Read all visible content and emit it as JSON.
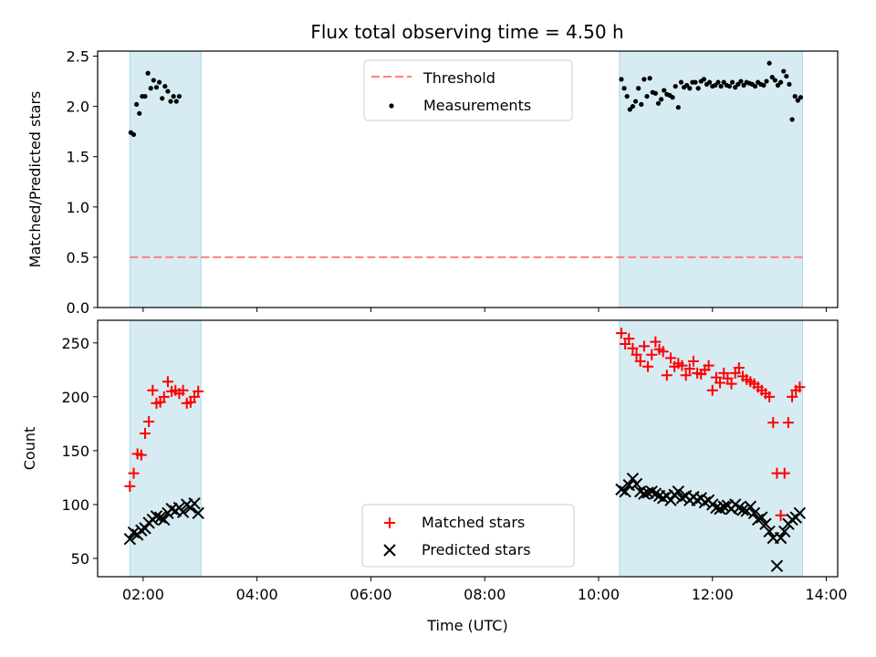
{
  "title": "Flux total observing time = 4.50 h",
  "colors": {
    "shade": "#add8e6",
    "threshold": "#ff7f7f",
    "measurements": "#000000",
    "matched": "#ff0000",
    "predicted": "#000000"
  },
  "chart_data": [
    {
      "type": "scatter",
      "ylabel": "Matched/Predicted stars",
      "xlim_hours": [
        1.2,
        14.2
      ],
      "ylim": [
        0,
        2.55
      ],
      "yticks": [
        "0.0",
        "0.5",
        "1.0",
        "1.5",
        "2.0",
        "2.5"
      ],
      "shaded_intervals": [
        [
          "01:46",
          "03:01"
        ],
        [
          "10:22",
          "13:35"
        ]
      ],
      "threshold": 0.5,
      "legend": {
        "placement": "top-center",
        "entries": [
          "Threshold",
          "Measurements"
        ]
      },
      "series": [
        {
          "name": "Measurements",
          "x": [
            "01:47",
            "01:50",
            "01:53",
            "01:56",
            "01:59",
            "02:02",
            "02:05",
            "02:08",
            "02:11",
            "02:14",
            "02:17",
            "02:20",
            "02:23",
            "02:26",
            "02:29",
            "02:32",
            "02:35",
            "02:38",
            "10:24",
            "10:27",
            "10:30",
            "10:33",
            "10:36",
            "10:39",
            "10:42",
            "10:45",
            "10:48",
            "10:51",
            "10:54",
            "10:57",
            "11:00",
            "11:03",
            "11:06",
            "11:09",
            "11:12",
            "11:15",
            "11:18",
            "11:21",
            "11:24",
            "11:27",
            "11:30",
            "11:33",
            "11:36",
            "11:39",
            "11:42",
            "11:45",
            "11:48",
            "11:51",
            "11:54",
            "11:57",
            "12:00",
            "12:03",
            "12:06",
            "12:09",
            "12:12",
            "12:15",
            "12:18",
            "12:21",
            "12:24",
            "12:27",
            "12:30",
            "12:33",
            "12:36",
            "12:39",
            "12:42",
            "12:45",
            "12:48",
            "12:51",
            "12:54",
            "12:57",
            "13:00",
            "13:03",
            "13:06",
            "13:09",
            "13:12",
            "13:15",
            "13:18",
            "13:21",
            "13:24",
            "13:27",
            "13:30",
            "13:33"
          ],
          "y": [
            1.74,
            1.72,
            2.02,
            1.93,
            2.1,
            2.1,
            2.33,
            2.18,
            2.26,
            2.19,
            2.24,
            2.08,
            2.2,
            2.15,
            2.05,
            2.1,
            2.05,
            2.1,
            2.27,
            2.18,
            2.1,
            1.97,
            2.0,
            2.05,
            2.18,
            2.02,
            2.27,
            2.1,
            2.28,
            2.14,
            2.13,
            2.03,
            2.07,
            2.16,
            2.12,
            2.11,
            2.09,
            2.2,
            1.99,
            2.24,
            2.19,
            2.21,
            2.18,
            2.24,
            2.24,
            2.18,
            2.25,
            2.27,
            2.22,
            2.24,
            2.2,
            2.21,
            2.24,
            2.2,
            2.24,
            2.21,
            2.2,
            2.24,
            2.19,
            2.22,
            2.25,
            2.21,
            2.24,
            2.23,
            2.22,
            2.2,
            2.24,
            2.22,
            2.21,
            2.25,
            2.43,
            2.29,
            2.26,
            2.21,
            2.24,
            2.35,
            2.3,
            2.22,
            1.87,
            2.1,
            2.06,
            2.09
          ]
        }
      ]
    },
    {
      "type": "scatter",
      "xlabel": "Time (UTC)",
      "ylabel": "Count",
      "xlim_hours": [
        1.2,
        14.2
      ],
      "ylim": [
        33,
        271
      ],
      "yticks": [
        "50",
        "100",
        "150",
        "200",
        "250"
      ],
      "xticks": [
        "02:00",
        "04:00",
        "06:00",
        "08:00",
        "10:00",
        "12:00",
        "14:00"
      ],
      "shaded_intervals": [
        [
          "01:46",
          "03:01"
        ],
        [
          "10:22",
          "13:35"
        ]
      ],
      "legend": {
        "placement": "bottom-center",
        "entries": [
          "Matched stars",
          "Predicted stars"
        ]
      },
      "series": [
        {
          "name": "Matched stars",
          "marker": "plus",
          "x": [
            "01:46",
            "01:50",
            "01:54",
            "01:58",
            "02:02",
            "02:06",
            "02:10",
            "02:14",
            "02:18",
            "02:22",
            "02:26",
            "02:30",
            "02:34",
            "02:38",
            "02:42",
            "02:46",
            "02:50",
            "02:54",
            "02:58",
            "10:24",
            "10:28",
            "10:32",
            "10:36",
            "10:40",
            "10:44",
            "10:48",
            "10:52",
            "10:56",
            "11:00",
            "11:04",
            "11:08",
            "11:12",
            "11:16",
            "11:20",
            "11:24",
            "11:28",
            "11:32",
            "11:36",
            "11:40",
            "11:44",
            "11:48",
            "11:52",
            "11:56",
            "12:00",
            "12:04",
            "12:08",
            "12:12",
            "12:16",
            "12:20",
            "12:24",
            "12:28",
            "12:32",
            "12:36",
            "12:40",
            "12:44",
            "12:48",
            "12:52",
            "12:56",
            "13:00",
            "13:04",
            "13:08",
            "13:12",
            "13:16",
            "13:20",
            "13:24",
            "13:28",
            "13:32"
          ],
          "y": [
            117,
            129,
            147,
            146,
            166,
            177,
            206,
            194,
            195,
            200,
            214,
            205,
            206,
            203,
            206,
            194,
            195,
            200,
            205,
            259,
            249,
            254,
            245,
            239,
            233,
            247,
            228,
            239,
            251,
            244,
            242,
            220,
            236,
            228,
            231,
            229,
            220,
            226,
            233,
            222,
            221,
            225,
            229,
            206,
            218,
            213,
            222,
            217,
            212,
            222,
            227,
            219,
            216,
            214,
            212,
            209,
            206,
            203,
            200,
            176,
            129,
            90,
            129,
            176,
            200,
            206,
            209
          ],
          "y_note": ""
        },
        {
          "name": "Predicted stars",
          "marker": "x",
          "x": [
            "01:46",
            "01:50",
            "01:54",
            "01:58",
            "02:02",
            "02:06",
            "02:10",
            "02:14",
            "02:18",
            "02:22",
            "02:26",
            "02:30",
            "02:34",
            "02:38",
            "02:42",
            "02:46",
            "02:50",
            "02:54",
            "02:58",
            "10:24",
            "10:28",
            "10:32",
            "10:36",
            "10:40",
            "10:44",
            "10:48",
            "10:52",
            "10:56",
            "11:00",
            "11:04",
            "11:08",
            "11:12",
            "11:16",
            "11:20",
            "11:24",
            "11:28",
            "11:32",
            "11:36",
            "11:40",
            "11:44",
            "11:48",
            "11:52",
            "11:56",
            "12:00",
            "12:04",
            "12:08",
            "12:12",
            "12:16",
            "12:20",
            "12:24",
            "12:28",
            "12:32",
            "12:36",
            "12:40",
            "12:44",
            "12:48",
            "12:52",
            "12:56",
            "13:00",
            "13:04",
            "13:08",
            "13:12",
            "13:16",
            "13:20",
            "13:24",
            "13:28",
            "13:32"
          ],
          "y": [
            68,
            74,
            72,
            76,
            78,
            83,
            86,
            89,
            88,
            86,
            92,
            96,
            94,
            97,
            93,
            100,
            97,
            101,
            92,
            114,
            112,
            118,
            124,
            119,
            112,
            110,
            111,
            112,
            110,
            108,
            106,
            108,
            104,
            109,
            112,
            106,
            108,
            104,
            107,
            104,
            106,
            102,
            104,
            100,
            97,
            96,
            98,
            99,
            96,
            100,
            97,
            95,
            94,
            98,
            92,
            86,
            88,
            82,
            75,
            69,
            43,
            69,
            75,
            82,
            86,
            88,
            92
          ]
        }
      ]
    }
  ]
}
